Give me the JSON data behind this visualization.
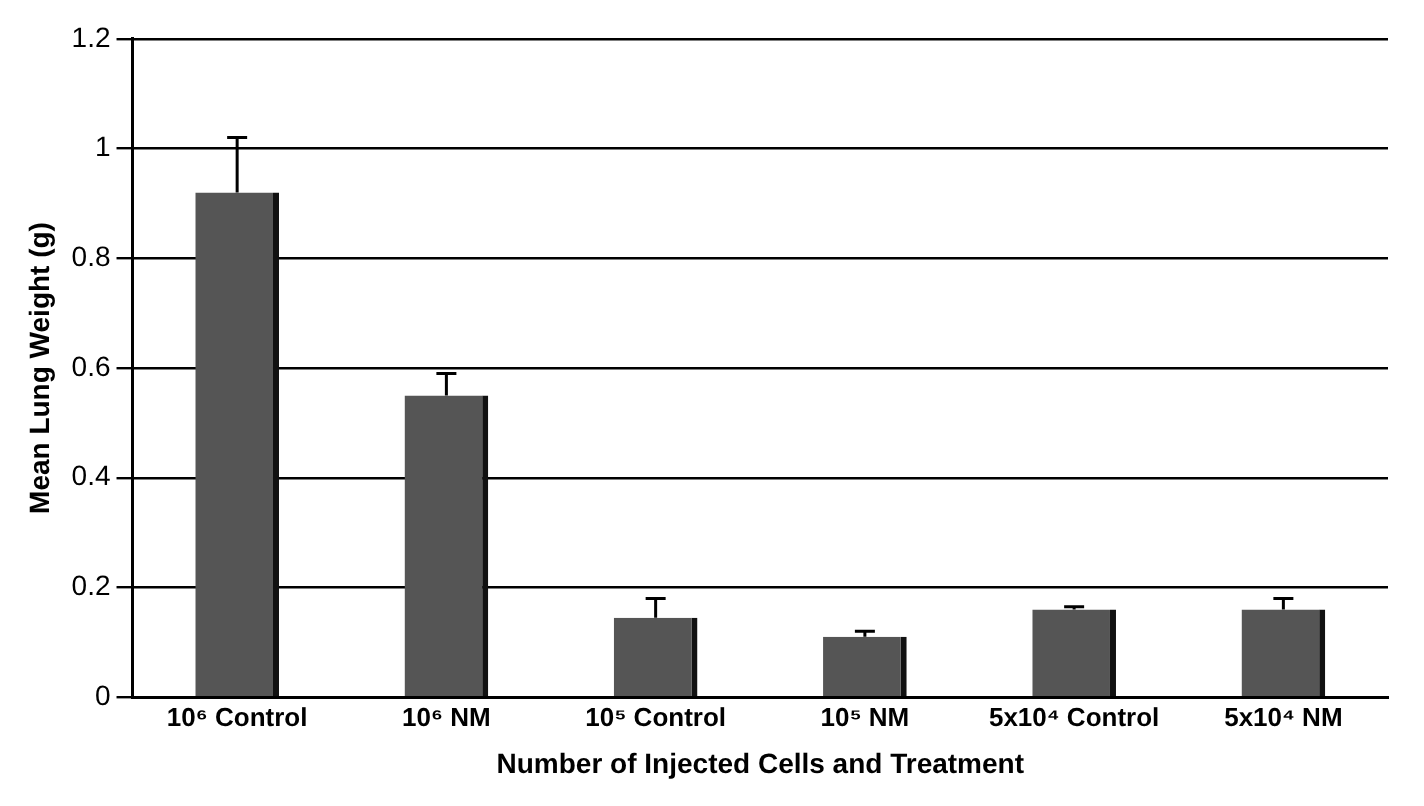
{
  "chart_data": {
    "type": "bar",
    "xlabel": "Number of Injected Cells and Treatment",
    "ylabel": "Mean Lung Weight (g)",
    "categories": [
      "10⁶ Control",
      "10⁶ NM",
      "10⁵ Control",
      "10⁵ NM",
      "5x10⁴ Control",
      "5x10⁴ NM"
    ],
    "values": [
      0.92,
      0.55,
      0.145,
      0.11,
      0.16,
      0.16
    ],
    "errors": [
      [
        0.92,
        1.02
      ],
      [
        0.55,
        0.59
      ],
      [
        0.145,
        0.18
      ],
      [
        0.11,
        0.12
      ],
      [
        0.16,
        0.165
      ],
      [
        0.16,
        0.18
      ]
    ],
    "color": "#555555",
    "ylim": [
      0,
      1.2
    ],
    "yticks": [
      0,
      0.2,
      0.4,
      0.6,
      0.8,
      1,
      1.2
    ],
    "grid": "y",
    "legend": false
  }
}
